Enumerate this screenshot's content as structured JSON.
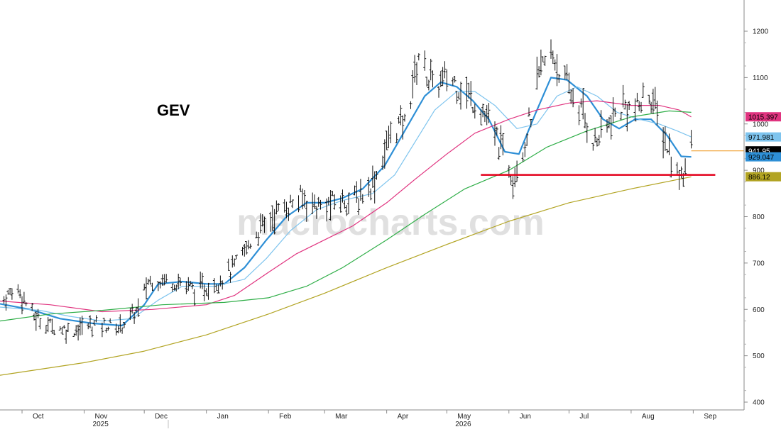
{
  "chart_data": {
    "type": "line",
    "ticker": "GEV",
    "watermark": "macrocharts.com",
    "y_axis": {
      "ylim": [
        390,
        1260
      ],
      "ticks": [
        400,
        500,
        600,
        700,
        800,
        900,
        1000,
        1100,
        1200
      ],
      "side": "right"
    },
    "x_axis": {
      "start": "2025-09-20",
      "end": "2026-09-20",
      "months": [
        {
          "label": "Oct",
          "date": "2025-10-01"
        },
        {
          "label": "Nov",
          "date": "2025-11-01"
        },
        {
          "label": "Dec",
          "date": "2025-12-01"
        },
        {
          "label": "Jan",
          "date": "2026-01-01"
        },
        {
          "label": "Feb",
          "date": "2026-02-01"
        },
        {
          "label": "Mar",
          "date": "2026-03-01"
        },
        {
          "label": "Apr",
          "date": "2026-04-01"
        },
        {
          "label": "May",
          "date": "2026-05-01"
        },
        {
          "label": "Jun",
          "date": "2026-06-01"
        },
        {
          "label": "Jul",
          "date": "2026-07-01"
        },
        {
          "label": "Aug",
          "date": "2026-08-01"
        },
        {
          "label": "Sep",
          "date": "2026-09-01"
        }
      ],
      "years": [
        {
          "label": "2025",
          "date": "2025-11-01"
        },
        {
          "label": "2026",
          "date": "2026-05-01"
        }
      ]
    },
    "price_keypoints": [
      [
        "2025-09-20",
        612
      ],
      [
        "2025-09-28",
        650
      ],
      [
        "2025-10-07",
        585
      ],
      [
        "2025-10-15",
        565
      ],
      [
        "2025-10-25",
        555
      ],
      [
        "2025-11-08",
        570
      ],
      [
        "2025-11-18",
        560
      ],
      [
        "2025-11-28",
        600
      ],
      [
        "2025-12-03",
        660
      ],
      [
        "2025-12-08",
        665
      ],
      [
        "2025-12-18",
        660
      ],
      [
        "2025-12-28",
        640
      ],
      [
        "2026-01-06",
        660
      ],
      [
        "2026-01-15",
        690
      ],
      [
        "2026-01-25",
        760
      ],
      [
        "2026-02-05",
        810
      ],
      [
        "2026-02-18",
        840
      ],
      [
        "2026-02-27",
        820
      ],
      [
        "2026-03-08",
        835
      ],
      [
        "2026-03-18",
        840
      ],
      [
        "2026-03-26",
        880
      ],
      [
        "2026-04-04",
        990
      ],
      [
        "2026-04-10",
        1000
      ],
      [
        "2026-04-17",
        1150
      ],
      [
        "2026-04-24",
        1080
      ],
      [
        "2026-05-03",
        1100
      ],
      [
        "2026-05-12",
        1060
      ],
      [
        "2026-05-18",
        1035
      ],
      [
        "2026-05-27",
        960
      ],
      [
        "2026-06-03",
        890
      ],
      [
        "2026-06-09",
        960
      ],
      [
        "2026-06-17",
        1120
      ],
      [
        "2026-06-23",
        1150
      ],
      [
        "2026-06-30",
        1080
      ],
      [
        "2026-07-07",
        1030
      ],
      [
        "2026-07-14",
        960
      ],
      [
        "2026-07-21",
        1000
      ],
      [
        "2026-07-28",
        1040
      ],
      [
        "2026-08-04",
        1030
      ],
      [
        "2026-08-10",
        1070
      ],
      [
        "2026-08-16",
        990
      ],
      [
        "2026-08-24",
        890
      ],
      [
        "2026-08-27",
        900
      ],
      [
        "2026-08-31",
        942
      ]
    ],
    "series": [
      {
        "color": "#2e8fd6",
        "width": 2.2,
        "points": [
          [
            "2025-09-20",
            612
          ],
          [
            "2025-10-05",
            600
          ],
          [
            "2025-10-20",
            580
          ],
          [
            "2025-11-05",
            570
          ],
          [
            "2025-11-20",
            565
          ],
          [
            "2025-12-01",
            610
          ],
          [
            "2025-12-08",
            655
          ],
          [
            "2025-12-20",
            660
          ],
          [
            "2026-01-01",
            655
          ],
          [
            "2026-01-10",
            655
          ],
          [
            "2026-01-20",
            690
          ],
          [
            "2026-01-31",
            750
          ],
          [
            "2026-02-10",
            800
          ],
          [
            "2026-02-20",
            830
          ],
          [
            "2026-03-01",
            830
          ],
          [
            "2026-03-10",
            840
          ],
          [
            "2026-03-20",
            860
          ],
          [
            "2026-03-31",
            910
          ],
          [
            "2026-04-10",
            985
          ],
          [
            "2026-04-20",
            1060
          ],
          [
            "2026-04-28",
            1090
          ],
          [
            "2026-05-06",
            1080
          ],
          [
            "2026-05-14",
            1050
          ],
          [
            "2026-05-22",
            1010
          ],
          [
            "2026-05-30",
            940
          ],
          [
            "2026-06-06",
            935
          ],
          [
            "2026-06-14",
            1020
          ],
          [
            "2026-06-22",
            1100
          ],
          [
            "2026-06-30",
            1095
          ],
          [
            "2026-07-10",
            1060
          ],
          [
            "2026-07-18",
            1010
          ],
          [
            "2026-07-26",
            990
          ],
          [
            "2026-08-03",
            1010
          ],
          [
            "2026-08-11",
            1010
          ],
          [
            "2026-08-19",
            975
          ],
          [
            "2026-08-26",
            930
          ],
          [
            "2026-08-31",
            929
          ]
        ]
      },
      {
        "color": "#7ec4ee",
        "width": 1.2,
        "points": [
          [
            "2025-09-20",
            605
          ],
          [
            "2025-10-10",
            598
          ],
          [
            "2025-10-25",
            585
          ],
          [
            "2025-11-10",
            575
          ],
          [
            "2025-11-25",
            580
          ],
          [
            "2025-12-08",
            620
          ],
          [
            "2025-12-20",
            650
          ],
          [
            "2026-01-05",
            650
          ],
          [
            "2026-01-20",
            665
          ],
          [
            "2026-01-31",
            710
          ],
          [
            "2026-02-12",
            770
          ],
          [
            "2026-02-25",
            815
          ],
          [
            "2026-03-10",
            835
          ],
          [
            "2026-03-25",
            850
          ],
          [
            "2026-04-05",
            890
          ],
          [
            "2026-04-15",
            960
          ],
          [
            "2026-04-25",
            1030
          ],
          [
            "2026-05-06",
            1070
          ],
          [
            "2026-05-15",
            1070
          ],
          [
            "2026-05-25",
            1040
          ],
          [
            "2026-06-05",
            990
          ],
          [
            "2026-06-15",
            1000
          ],
          [
            "2026-06-25",
            1060
          ],
          [
            "2026-07-05",
            1080
          ],
          [
            "2026-07-15",
            1060
          ],
          [
            "2026-07-25",
            1025
          ],
          [
            "2026-08-05",
            1010
          ],
          [
            "2026-08-15",
            1000
          ],
          [
            "2026-08-24",
            985
          ],
          [
            "2026-08-31",
            972
          ]
        ]
      },
      {
        "color": "#e0337f",
        "width": 1.2,
        "points": [
          [
            "2025-09-20",
            618
          ],
          [
            "2025-10-15",
            610
          ],
          [
            "2025-11-10",
            595
          ],
          [
            "2025-12-05",
            600
          ],
          [
            "2026-01-01",
            610
          ],
          [
            "2026-01-15",
            630
          ],
          [
            "2026-02-01",
            680
          ],
          [
            "2026-02-15",
            720
          ],
          [
            "2026-03-01",
            750
          ],
          [
            "2026-03-15",
            780
          ],
          [
            "2026-04-01",
            830
          ],
          [
            "2026-04-15",
            880
          ],
          [
            "2026-05-01",
            935
          ],
          [
            "2026-05-15",
            980
          ],
          [
            "2026-06-01",
            1010
          ],
          [
            "2026-06-15",
            1030
          ],
          [
            "2026-07-01",
            1045
          ],
          [
            "2026-07-15",
            1050
          ],
          [
            "2026-08-01",
            1040
          ],
          [
            "2026-08-15",
            1040
          ],
          [
            "2026-08-25",
            1030
          ],
          [
            "2026-08-31",
            1015
          ]
        ]
      },
      {
        "color": "#2fae48",
        "width": 1.2,
        "points": [
          [
            "2025-09-20",
            575
          ],
          [
            "2025-10-15",
            590
          ],
          [
            "2025-11-10",
            598
          ],
          [
            "2025-12-10",
            610
          ],
          [
            "2026-01-10",
            615
          ],
          [
            "2026-02-01",
            625
          ],
          [
            "2026-02-20",
            650
          ],
          [
            "2026-03-10",
            690
          ],
          [
            "2026-04-01",
            750
          ],
          [
            "2026-04-20",
            805
          ],
          [
            "2026-05-10",
            860
          ],
          [
            "2026-06-01",
            900
          ],
          [
            "2026-06-20",
            950
          ],
          [
            "2026-07-10",
            985
          ],
          [
            "2026-08-01",
            1015
          ],
          [
            "2026-08-20",
            1028
          ],
          [
            "2026-08-31",
            1025
          ]
        ]
      },
      {
        "color": "#b2a423",
        "width": 1.2,
        "points": [
          [
            "2025-09-20",
            458
          ],
          [
            "2025-11-01",
            485
          ],
          [
            "2025-12-01",
            510
          ],
          [
            "2026-01-01",
            545
          ],
          [
            "2026-02-01",
            590
          ],
          [
            "2026-03-01",
            635
          ],
          [
            "2026-04-01",
            690
          ],
          [
            "2026-05-01",
            740
          ],
          [
            "2026-06-01",
            790
          ],
          [
            "2026-07-01",
            830
          ],
          [
            "2026-08-01",
            860
          ],
          [
            "2026-08-31",
            886
          ]
        ]
      }
    ],
    "support_line": {
      "value": 890,
      "from": "2026-05-18",
      "to": "2026-09-12",
      "color": "#e3001b"
    },
    "last_price_line": {
      "value": 941.95,
      "from": "2026-08-31",
      "to": "2026-09-20",
      "color": "#f0a030"
    },
    "value_tags": [
      {
        "label": "1015.397",
        "value": 1015.397,
        "bg": "#e0337f",
        "fg": "#000000"
      },
      {
        "label": "971.981",
        "value": 971.981,
        "bg": "#7ec4ee",
        "fg": "#000000"
      },
      {
        "label": "941.95",
        "value": 941.95,
        "bg": "#000000",
        "fg": "#ffffff"
      },
      {
        "label": "929.047",
        "value": 929.047,
        "bg": "#2e8fd6",
        "fg": "#000000"
      },
      {
        "label": "886.12",
        "value": 886.12,
        "bg": "#b2a423",
        "fg": "#000000"
      }
    ]
  }
}
